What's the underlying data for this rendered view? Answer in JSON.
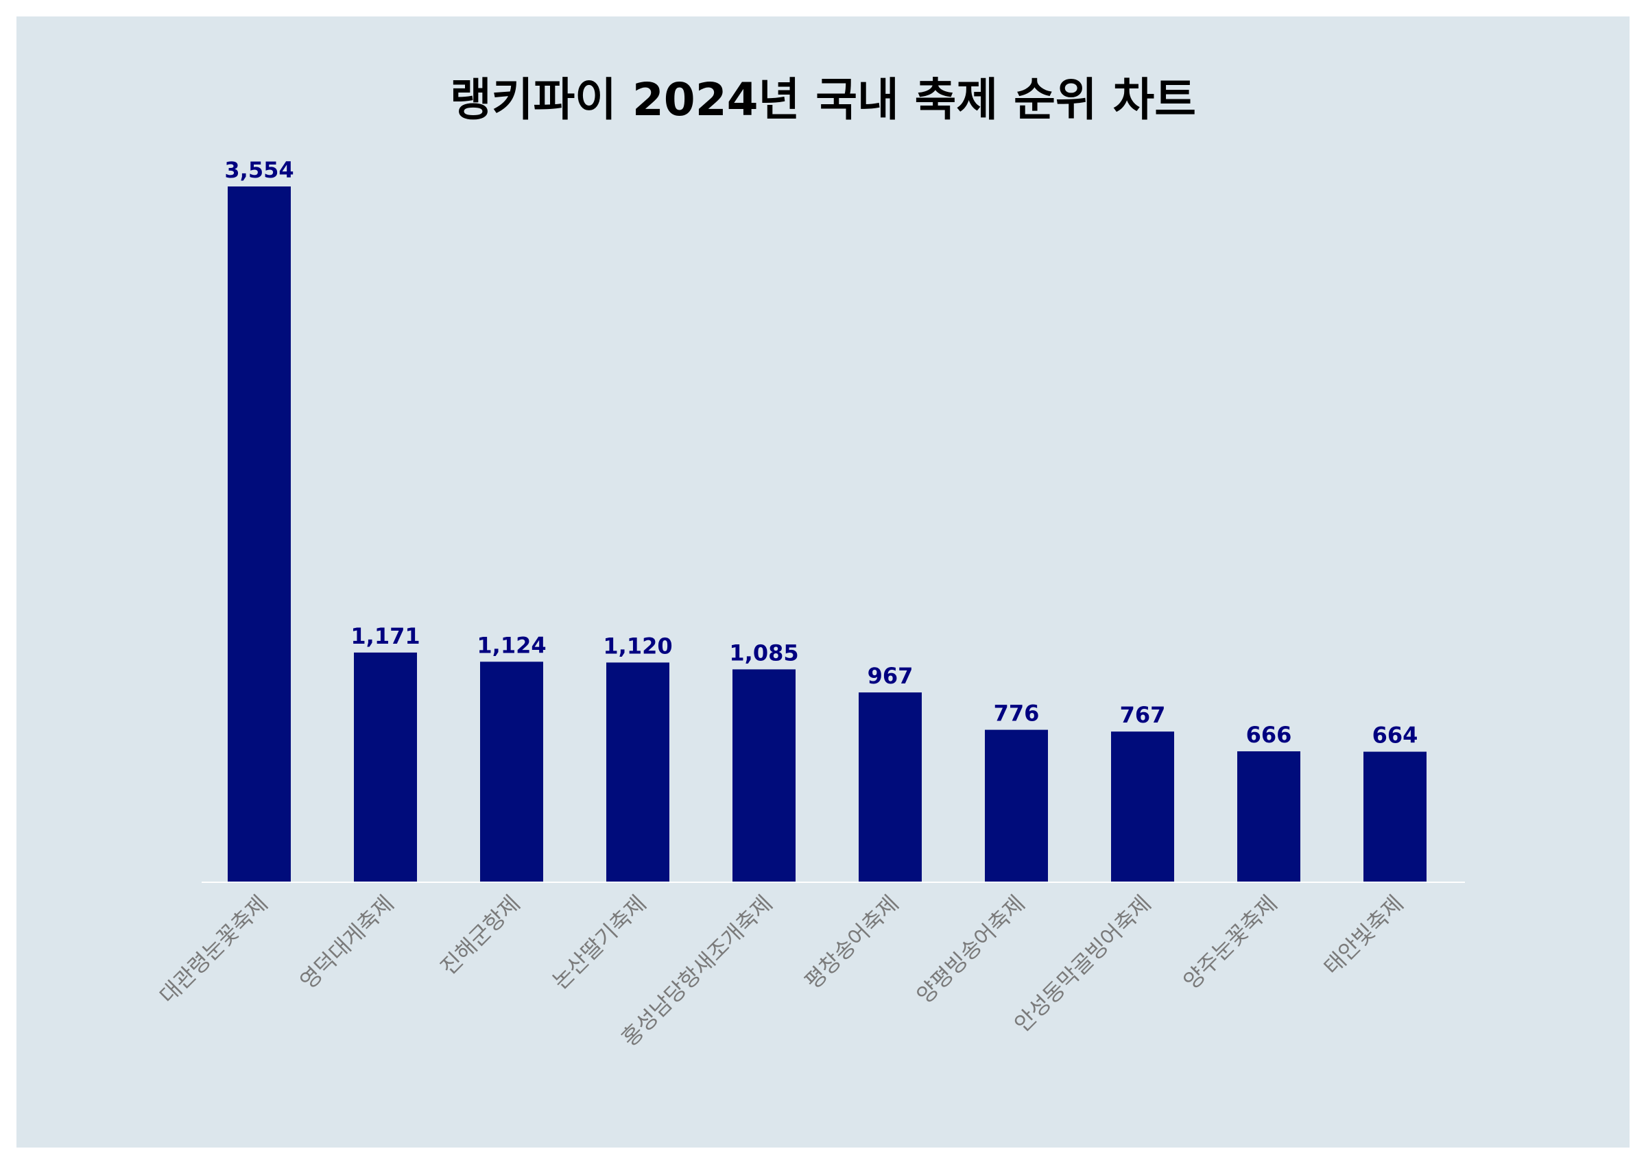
{
  "chart_data": {
    "type": "bar",
    "title": "랭키파이 2024년 국내 축제 순위 차트",
    "categories": [
      "대관령눈꽃축제",
      "영덕대게축제",
      "진해군항제",
      "논산딸기축제",
      "홍성남당항새조개축제",
      "평창송어축제",
      "양평빙송어축제",
      "안성동막골빙어축제",
      "양주눈꽃축제",
      "태안빛축제"
    ],
    "values": [
      3554,
      1171,
      1124,
      1120,
      1085,
      967,
      776,
      767,
      666,
      664
    ],
    "value_labels": [
      "3,554",
      "1,171",
      "1,124",
      "1,120",
      "1,085",
      "967",
      "776",
      "767",
      "666",
      "664"
    ],
    "xlabel": "",
    "ylabel": "",
    "ylim": [
      0,
      3554
    ],
    "grid": false,
    "legend": "none",
    "colors": {
      "bar": "#000c7b",
      "value_label": "#000080",
      "category_label": "#7a7a7a",
      "background": "#dce6ec",
      "baseline": "#ffffff"
    }
  }
}
